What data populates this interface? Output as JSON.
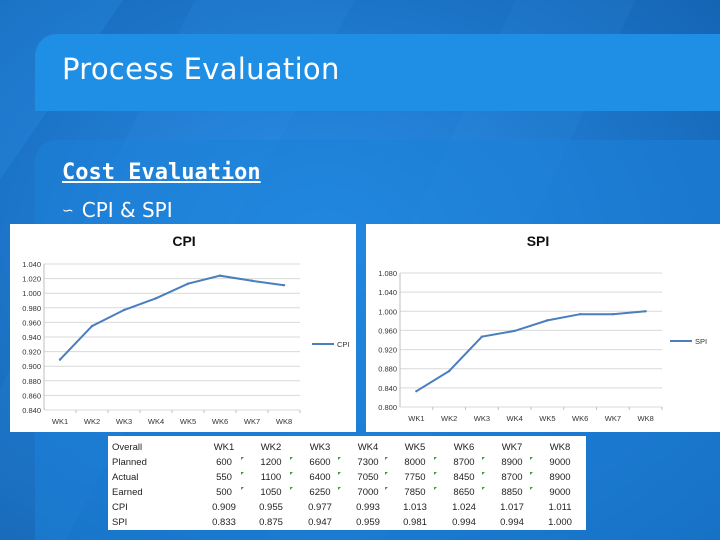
{
  "slide": {
    "title": "Process Evaluation",
    "section_heading": "Cost Evaluation",
    "bullet": "CPI & SPI",
    "colors": {
      "background": "#1b78c8",
      "title_band": "#1f8fe6",
      "series_line": "#4a7ebf"
    }
  },
  "chart_data": [
    {
      "type": "line",
      "title": "CPI",
      "categories": [
        "WK1",
        "WK2",
        "WK3",
        "WK4",
        "WK5",
        "WK6",
        "WK7",
        "WK8"
      ],
      "series": [
        {
          "name": "CPI",
          "values": [
            0.909,
            0.955,
            0.977,
            0.993,
            1.013,
            1.024,
            1.017,
            1.011
          ]
        }
      ],
      "y_ticks": [
        "1.040",
        "1.020",
        "1.000",
        "0.980",
        "0.960",
        "0.940",
        "0.920",
        "0.900",
        "0.880",
        "0.860",
        "0.840"
      ],
      "ylim": [
        0.84,
        1.04
      ],
      "grid": true,
      "legend": "right"
    },
    {
      "type": "line",
      "title": "SPI",
      "categories": [
        "WK1",
        "WK2",
        "WK3",
        "WK4",
        "WK5",
        "WK6",
        "WK7",
        "WK8"
      ],
      "series": [
        {
          "name": "SPI",
          "values": [
            0.833,
            0.875,
            0.947,
            0.959,
            0.981,
            0.994,
            0.994,
            1.0
          ]
        }
      ],
      "y_ticks": [
        "1.080",
        "1.040",
        "1.000",
        "0.960",
        "0.920",
        "0.880",
        "0.840",
        "0.800"
      ],
      "ylim": [
        0.8,
        1.08
      ],
      "grid": true,
      "legend": "right"
    },
    {
      "type": "table",
      "columns": [
        "Overall",
        "WK1",
        "WK2",
        "WK3",
        "WK4",
        "WK5",
        "WK6",
        "WK7",
        "WK8"
      ],
      "rows": [
        {
          "label": "Planned",
          "values": [
            "600",
            "1200",
            "6600",
            "7300",
            "8000",
            "8700",
            "8900",
            "9000"
          ]
        },
        {
          "label": "Actual",
          "values": [
            "550",
            "1100",
            "6400",
            "7050",
            "7750",
            "8450",
            "8700",
            "8900"
          ]
        },
        {
          "label": "Earned",
          "values": [
            "500",
            "1050",
            "6250",
            "7000",
            "7850",
            "8650",
            "8850",
            "9000"
          ]
        },
        {
          "label": "CPI",
          "values": [
            "0.909",
            "0.955",
            "0.977",
            "0.993",
            "1.013",
            "1.024",
            "1.017",
            "1.011"
          ]
        },
        {
          "label": "SPI",
          "values": [
            "0.833",
            "0.875",
            "0.947",
            "0.959",
            "0.981",
            "0.994",
            "0.994",
            "1.000"
          ]
        }
      ]
    }
  ]
}
